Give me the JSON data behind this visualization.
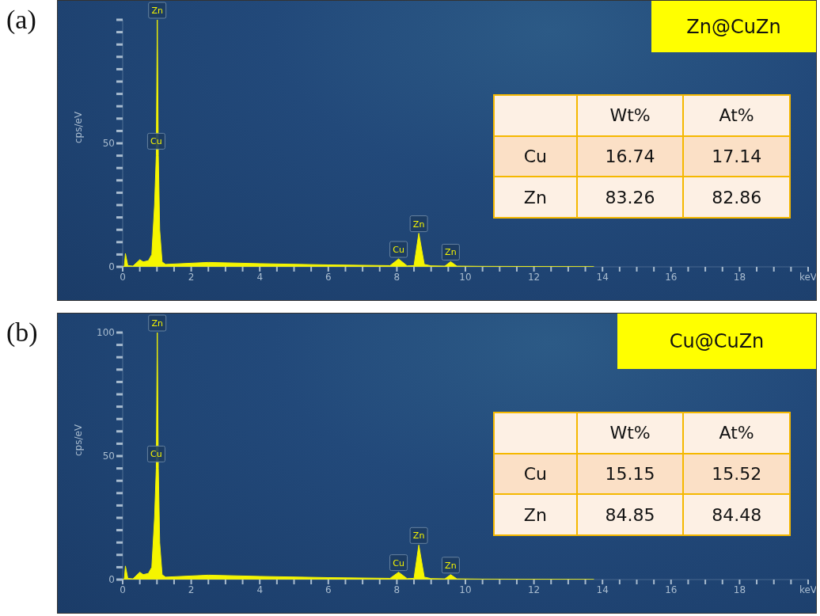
{
  "chart_data": [
    {
      "type": "area",
      "title": "(a)",
      "subtitle": "Zn@CuZn",
      "ylabel": "cps/eV",
      "x": [
        0,
        0.05,
        0.08,
        0.15,
        0.3,
        0.5,
        0.6,
        0.75,
        0.85,
        0.93,
        0.98,
        1.01,
        1.04,
        1.08,
        1.15,
        1.25,
        2.5,
        4,
        6,
        7.8,
        8.05,
        8.3,
        8.5,
        8.64,
        8.8,
        9.0,
        9.4,
        9.57,
        9.75,
        10.5,
        13.75
      ],
      "series": [
        {
          "color": "#f5f500",
          "values": [
            0,
            0.5,
            5.4,
            0.5,
            0.3,
            2.9,
            2.0,
            2.5,
            5,
            25,
            45,
            100,
            45,
            15,
            2,
            1,
            1.8,
            1.3,
            0.8,
            0.5,
            3.2,
            0.4,
            0.5,
            13.6,
            1,
            0.4,
            0.3,
            2.1,
            0.3,
            0.2,
            0.1
          ]
        }
      ],
      "xlim": [
        0,
        20
      ],
      "ylim": [
        0,
        100
      ],
      "xticks": [
        0,
        {
          "value": 0.5,
          "label": null
        },
        {
          "value": 1,
          "label": null
        },
        {
          "value": 1.5,
          "label": null
        },
        2,
        {
          "value": 2.5,
          "label": null
        },
        {
          "value": 3,
          "label": null
        },
        {
          "value": 3.5,
          "label": null
        },
        4,
        {
          "value": 4.5,
          "label": null
        },
        {
          "value": 5,
          "label": null
        },
        {
          "value": 5.5,
          "label": null
        },
        6,
        {
          "value": 6.5,
          "label": null
        },
        {
          "value": 7,
          "label": null
        },
        {
          "value": 7.5,
          "label": null
        },
        8,
        {
          "value": 8.5,
          "label": null
        },
        {
          "value": 9,
          "label": null
        },
        {
          "value": 9.5,
          "label": null
        },
        10,
        {
          "value": 10.5,
          "label": null
        },
        {
          "value": 11,
          "label": null
        },
        {
          "value": 11.5,
          "label": null
        },
        12,
        {
          "value": 12.5,
          "label": null
        },
        {
          "value": 13,
          "label": null
        },
        {
          "value": 13.5,
          "label": null
        },
        14,
        {
          "value": 14.5,
          "label": null
        },
        {
          "value": 15,
          "label": null
        },
        {
          "value": 15.5,
          "label": null
        },
        16,
        {
          "value": 16.5,
          "label": null
        },
        {
          "value": 17,
          "label": null
        },
        {
          "value": 17.5,
          "label": null
        },
        18,
        {
          "value": 18.5,
          "label": null
        },
        {
          "value": 19,
          "label": null
        },
        {
          "value": 19.5,
          "label": null
        },
        {
          "value": 20,
          "label": "keV"
        }
      ],
      "yticks": [
        0,
        {
          "value": 5,
          "label": null
        },
        {
          "value": 10,
          "label": null
        },
        {
          "value": 15,
          "label": null
        },
        {
          "value": 20,
          "label": null
        },
        {
          "value": 25,
          "label": null
        },
        {
          "value": 30,
          "label": null
        },
        {
          "value": 35,
          "label": null
        },
        {
          "value": 40,
          "label": null
        },
        {
          "value": 45,
          "label": null
        },
        50,
        {
          "value": 55,
          "label": null
        },
        {
          "value": 60,
          "label": null
        },
        {
          "value": 65,
          "label": null
        },
        {
          "value": 70,
          "label": null
        },
        {
          "value": 75,
          "label": null
        },
        {
          "value": 80,
          "label": null
        },
        {
          "value": 85,
          "label": null
        },
        {
          "value": 90,
          "label": null
        },
        {
          "value": 95,
          "label": null
        },
        {
          "value": 100,
          "label": null
        }
      ],
      "annotations": [
        {
          "text": "Zn",
          "x": 1.01,
          "y": 100
        },
        {
          "text": "Cu",
          "x": 0.98,
          "y": 47
        },
        {
          "text": "Cu",
          "x": 8.05,
          "y": 3.2
        },
        {
          "text": "Zn",
          "x": 8.64,
          "y": 13.6
        },
        {
          "text": "Zn",
          "x": 9.57,
          "y": 2.1
        },
        "Wt%",
        "At%",
        "Cu",
        "16.74",
        "17.14",
        "Zn",
        "83.26",
        "82.86"
      ]
    },
    {
      "type": "area",
      "title": "(b)",
      "subtitle": "Cu@CuZn",
      "ylabel": "cps/eV",
      "x": [
        0,
        0.05,
        0.08,
        0.15,
        0.3,
        0.5,
        0.6,
        0.75,
        0.85,
        0.93,
        0.98,
        1.01,
        1.04,
        1.08,
        1.15,
        1.25,
        2.5,
        4,
        6,
        7.8,
        8.05,
        8.3,
        8.5,
        8.64,
        8.8,
        9.0,
        9.4,
        9.57,
        9.75,
        10.5,
        13.75
      ],
      "series": [
        {
          "color": "#f5f500",
          "values": [
            0,
            0.5,
            5.5,
            0.5,
            0.3,
            3.0,
            2.0,
            2.5,
            5,
            25,
            45,
            100,
            45,
            15,
            2,
            1,
            1.8,
            1.3,
            0.8,
            0.5,
            3.0,
            0.4,
            0.5,
            14,
            1,
            0.4,
            0.3,
            2.0,
            0.3,
            0.2,
            0.1
          ]
        }
      ],
      "xlim": [
        0,
        20
      ],
      "ylim": [
        0,
        100
      ],
      "xticks": [
        0,
        {
          "value": 0.5,
          "label": null
        },
        {
          "value": 1,
          "label": null
        },
        {
          "value": 1.5,
          "label": null
        },
        2,
        {
          "value": 2.5,
          "label": null
        },
        {
          "value": 3,
          "label": null
        },
        {
          "value": 3.5,
          "label": null
        },
        4,
        {
          "value": 4.5,
          "label": null
        },
        {
          "value": 5,
          "label": null
        },
        {
          "value": 5.5,
          "label": null
        },
        6,
        {
          "value": 6.5,
          "label": null
        },
        {
          "value": 7,
          "label": null
        },
        {
          "value": 7.5,
          "label": null
        },
        8,
        {
          "value": 8.5,
          "label": null
        },
        {
          "value": 9,
          "label": null
        },
        {
          "value": 9.5,
          "label": null
        },
        10,
        {
          "value": 10.5,
          "label": null
        },
        {
          "value": 11,
          "label": null
        },
        {
          "value": 11.5,
          "label": null
        },
        12,
        {
          "value": 12.5,
          "label": null
        },
        {
          "value": 13,
          "label": null
        },
        {
          "value": 13.5,
          "label": null
        },
        14,
        {
          "value": 14.5,
          "label": null
        },
        {
          "value": 15,
          "label": null
        },
        {
          "value": 15.5,
          "label": null
        },
        16,
        {
          "value": 16.5,
          "label": null
        },
        {
          "value": 17,
          "label": null
        },
        {
          "value": 17.5,
          "label": null
        },
        18,
        {
          "value": 18.5,
          "label": null
        },
        {
          "value": 19,
          "label": null
        },
        {
          "value": 19.5,
          "label": null
        },
        {
          "value": 20,
          "label": "keV"
        }
      ],
      "yticks": [
        0,
        {
          "value": 5,
          "label": null
        },
        {
          "value": 10,
          "label": null
        },
        {
          "value": 15,
          "label": null
        },
        {
          "value": 20,
          "label": null
        },
        {
          "value": 25,
          "label": null
        },
        {
          "value": 30,
          "label": null
        },
        {
          "value": 35,
          "label": null
        },
        {
          "value": 40,
          "label": null
        },
        {
          "value": 45,
          "label": null
        },
        50,
        {
          "value": 55,
          "label": null
        },
        {
          "value": 60,
          "label": null
        },
        {
          "value": 65,
          "label": null
        },
        {
          "value": 70,
          "label": null
        },
        {
          "value": 75,
          "label": null
        },
        {
          "value": 80,
          "label": null
        },
        {
          "value": 85,
          "label": null
        },
        {
          "value": 90,
          "label": null
        },
        {
          "value": 95,
          "label": null
        },
        100
      ],
      "annotations": [
        {
          "text": "Zn",
          "x": 1.01,
          "y": 100
        },
        {
          "text": "Cu",
          "x": 0.98,
          "y": 47
        },
        {
          "text": "Cu",
          "x": 8.05,
          "y": 3.0
        },
        {
          "text": "Zn",
          "x": 8.64,
          "y": 14
        },
        {
          "text": "Zn",
          "x": 9.57,
          "y": 2.0
        },
        "Wt%",
        "At%",
        "Cu",
        "15.15",
        "15.52",
        "Zn",
        "84.85",
        "84.48"
      ]
    }
  ]
}
